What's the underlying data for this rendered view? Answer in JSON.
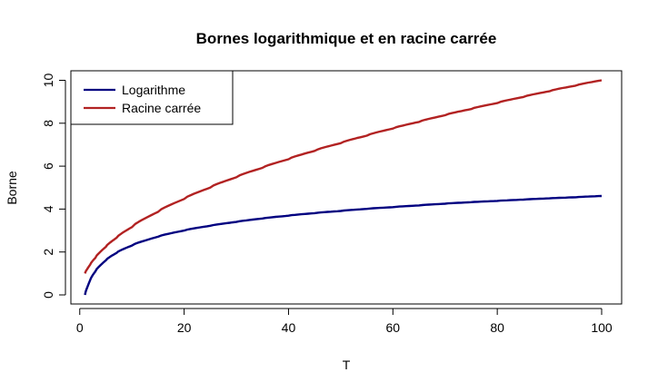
{
  "chart_data": {
    "type": "line",
    "title": "Bornes logarithmique et en racine carrée",
    "xlabel": "T",
    "ylabel": "Borne",
    "xlim": [
      1,
      100
    ],
    "ylim": [
      0,
      10
    ],
    "x_ticks": [
      0,
      20,
      40,
      60,
      80,
      100
    ],
    "y_ticks": [
      0,
      2,
      4,
      6,
      8,
      10
    ],
    "grid": false,
    "legend_position": "top-left",
    "x": [
      1,
      2,
      3,
      5,
      7,
      10,
      15,
      20,
      25,
      30,
      35,
      40,
      45,
      50,
      55,
      60,
      65,
      70,
      75,
      80,
      85,
      90,
      95,
      100
    ],
    "series": [
      {
        "name": "Logarithme",
        "color": "#000080",
        "values": [
          0,
          0.69,
          1.1,
          1.61,
          1.95,
          2.3,
          2.71,
          3.0,
          3.22,
          3.4,
          3.56,
          3.69,
          3.81,
          3.91,
          4.01,
          4.09,
          4.17,
          4.25,
          4.32,
          4.38,
          4.44,
          4.5,
          4.55,
          4.61
        ]
      },
      {
        "name": "Racine carrée",
        "color": "#B22222",
        "values": [
          1.0,
          1.41,
          1.73,
          2.24,
          2.65,
          3.16,
          3.87,
          4.47,
          5.0,
          5.48,
          5.92,
          6.32,
          6.71,
          7.07,
          7.42,
          7.75,
          8.06,
          8.37,
          8.66,
          8.94,
          9.22,
          9.49,
          9.75,
          10.0
        ]
      }
    ]
  }
}
